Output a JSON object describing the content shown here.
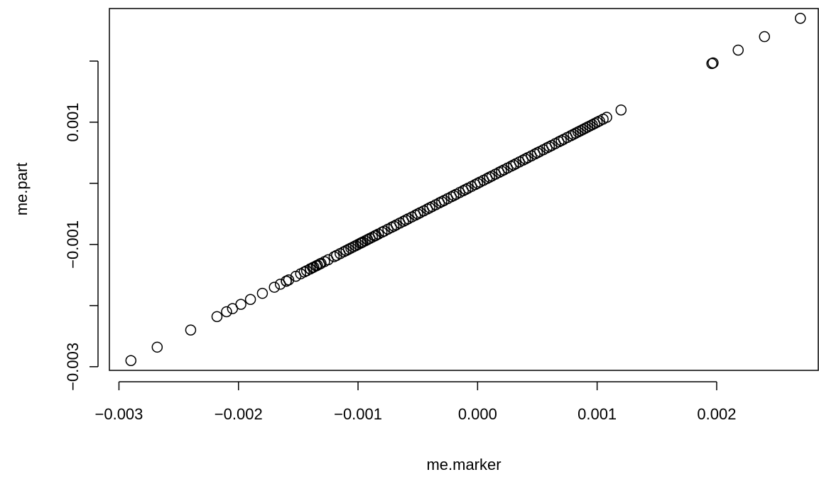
{
  "chart_data": {
    "type": "scatter",
    "xlabel": "me.marker",
    "ylabel": "me.part",
    "xlim": [
      -0.00308,
      0.00285
    ],
    "ylim": [
      -0.00306,
      0.00286
    ],
    "x_ticks": [
      {
        "value": -0.003,
        "label": "−0.003"
      },
      {
        "value": -0.002,
        "label": "−0.002"
      },
      {
        "value": -0.001,
        "label": "−0.001"
      },
      {
        "value": 0.0,
        "label": "0.000"
      },
      {
        "value": 0.001,
        "label": "0.001"
      },
      {
        "value": 0.002,
        "label": "0.002"
      }
    ],
    "y_ticks": [
      {
        "value": -0.003,
        "label": "−0.003"
      },
      {
        "value": -0.002,
        "label": ""
      },
      {
        "value": -0.001,
        "label": "−0.001"
      },
      {
        "value": 0.0,
        "label": ""
      },
      {
        "value": 0.001,
        "label": "0.001"
      },
      {
        "value": 0.002,
        "label": ""
      }
    ],
    "marker": "open-circle",
    "grid": false,
    "legend": "none",
    "x": [
      -0.0029,
      -0.00268,
      -0.0024,
      -0.00218,
      -0.0021,
      -0.00205,
      -0.00198,
      -0.0019,
      -0.0018,
      -0.0017,
      -0.00165,
      -0.0016,
      -0.0016,
      -0.00158,
      -0.00152,
      -0.00148,
      -0.00145,
      -0.00143,
      -0.0014,
      -0.0014,
      -0.00138,
      -0.00137,
      -0.00135,
      -0.00134,
      -0.00132,
      -0.00131,
      -0.00128,
      -0.00125,
      -0.0012,
      -0.00118,
      -0.00115,
      -0.00112,
      -0.0011,
      -0.00108,
      -0.00106,
      -0.00104,
      -0.00102,
      -0.001,
      -0.00098,
      -0.00097,
      -0.00096,
      -0.00094,
      -0.00092,
      -0.0009,
      -0.00088,
      -0.00086,
      -0.00085,
      -0.00083,
      -0.0008,
      -0.00078,
      -0.00075,
      -0.00072,
      -0.0007,
      -0.00068,
      -0.00065,
      -0.00062,
      -0.0006,
      -0.00058,
      -0.00055,
      -0.00052,
      -0.0005,
      -0.00048,
      -0.00045,
      -0.00042,
      -0.0004,
      -0.00038,
      -0.00035,
      -0.00032,
      -0.0003,
      -0.00028,
      -0.00025,
      -0.00022,
      -0.0002,
      -0.00018,
      -0.00015,
      -0.00012,
      -0.0001,
      -8e-05,
      -5e-05,
      -2e-05,
      0.0,
      2e-05,
      5e-05,
      8e-05,
      0.0001,
      0.00012,
      0.00015,
      0.00018,
      0.0002,
      0.00022,
      0.00025,
      0.00028,
      0.0003,
      0.00032,
      0.00035,
      0.00038,
      0.0004,
      0.00042,
      0.00045,
      0.00048,
      0.0005,
      0.00052,
      0.00055,
      0.00058,
      0.0006,
      0.00062,
      0.00065,
      0.00068,
      0.0007,
      0.00072,
      0.00075,
      0.00078,
      0.0008,
      0.00082,
      0.00084,
      0.00086,
      0.00088,
      0.0009,
      0.00092,
      0.00094,
      0.00096,
      0.00098,
      0.001,
      0.00102,
      0.00105,
      0.00108,
      0.0012,
      0.00196,
      0.00197,
      0.00218,
      0.0024,
      0.0027
    ],
    "y": [
      -0.0029,
      -0.00268,
      -0.0024,
      -0.00218,
      -0.0021,
      -0.00205,
      -0.00198,
      -0.0019,
      -0.0018,
      -0.0017,
      -0.00165,
      -0.0016,
      -0.0016,
      -0.00158,
      -0.00152,
      -0.00148,
      -0.00145,
      -0.00143,
      -0.0014,
      -0.0014,
      -0.00138,
      -0.00137,
      -0.00135,
      -0.00134,
      -0.00132,
      -0.00131,
      -0.00128,
      -0.00125,
      -0.0012,
      -0.00118,
      -0.00115,
      -0.00112,
      -0.0011,
      -0.00108,
      -0.00106,
      -0.00104,
      -0.00102,
      -0.001,
      -0.00098,
      -0.00097,
      -0.00096,
      -0.00094,
      -0.00092,
      -0.0009,
      -0.00088,
      -0.00086,
      -0.00085,
      -0.00083,
      -0.0008,
      -0.00078,
      -0.00075,
      -0.00072,
      -0.0007,
      -0.00068,
      -0.00065,
      -0.00062,
      -0.0006,
      -0.00058,
      -0.00055,
      -0.00052,
      -0.0005,
      -0.00048,
      -0.00045,
      -0.00042,
      -0.0004,
      -0.00038,
      -0.00035,
      -0.00032,
      -0.0003,
      -0.00028,
      -0.00025,
      -0.00022,
      -0.0002,
      -0.00018,
      -0.00015,
      -0.00012,
      -0.0001,
      -8e-05,
      -5e-05,
      -2e-05,
      0.0,
      2e-05,
      5e-05,
      8e-05,
      0.0001,
      0.00012,
      0.00015,
      0.00018,
      0.0002,
      0.00022,
      0.00025,
      0.00028,
      0.0003,
      0.00032,
      0.00035,
      0.00038,
      0.0004,
      0.00042,
      0.00045,
      0.00048,
      0.0005,
      0.00052,
      0.00055,
      0.00058,
      0.0006,
      0.00062,
      0.00065,
      0.00068,
      0.0007,
      0.00072,
      0.00075,
      0.00078,
      0.0008,
      0.00082,
      0.00084,
      0.00086,
      0.00088,
      0.0009,
      0.00092,
      0.00094,
      0.00096,
      0.00098,
      0.001,
      0.00102,
      0.00105,
      0.00108,
      0.0012,
      0.00196,
      0.00197,
      0.00218,
      0.0024,
      0.0027
    ]
  }
}
